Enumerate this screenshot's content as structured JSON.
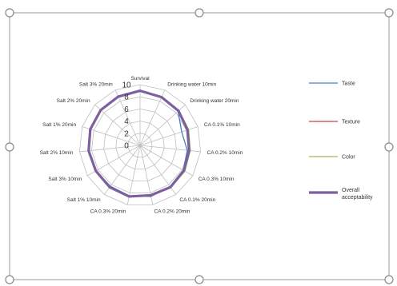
{
  "chart_data": {
    "type": "radar",
    "title": "",
    "categories": [
      "Survival",
      "Drinking water 10min",
      "Drinking water 20min",
      "CA 0.1% 10min",
      "CA 0.2% 10min",
      "CA 0.3% 10min",
      "CA 0.1% 20min",
      "CA 0.2% 20min",
      "CA 0.3% 20min",
      "Salt 1% 10min",
      "Salt 3% 10min",
      "Salt 2% 10min",
      "Salt 1% 20min",
      "Salt 2% 20min",
      "Salt 3% 20min"
    ],
    "r_ticks": [
      0,
      2,
      4,
      6,
      8,
      10
    ],
    "rlim": [
      0,
      10
    ],
    "series": [
      {
        "name": "Taste",
        "color": "#4a7ebb",
        "values": [
          9,
          8.6,
          8.4,
          7.2,
          7.8,
          8.2,
          8.4,
          8.6,
          8.5,
          8.3,
          8.4,
          8.5,
          8.6,
          8.7,
          8.8
        ]
      },
      {
        "name": "Texture",
        "color": "#be4b48",
        "values": [
          9,
          8.7,
          8.5,
          8.2,
          8.1,
          8.3,
          8.5,
          8.4,
          8.6,
          8.5,
          8.4,
          8.5,
          8.6,
          8.7,
          8.8
        ]
      },
      {
        "name": "Color",
        "color": "#98b954",
        "values": [
          9,
          8.8,
          8.6,
          8.4,
          8.3,
          8.5,
          8.6,
          8.5,
          8.6,
          8.6,
          8.5,
          8.6,
          8.7,
          8.8,
          8.9
        ]
      },
      {
        "name": "Overall acceptability",
        "color": "#7d5fa0",
        "values": [
          9,
          8.7,
          8.5,
          8.2,
          8.1,
          8.3,
          8.5,
          8.4,
          8.6,
          8.5,
          8.4,
          8.5,
          8.6,
          8.7,
          8.8
        ]
      }
    ],
    "legend_position": "right",
    "grid": true
  }
}
